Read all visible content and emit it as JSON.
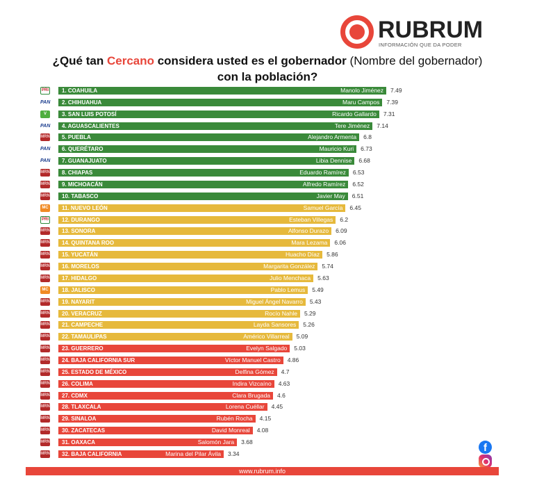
{
  "brand": {
    "name": "RUBRUM",
    "tagline": "INFORMACIÓN QUE DA PODER"
  },
  "title": {
    "part1": "¿Qué tan ",
    "highlight": "Cercano",
    "part2": " considera usted es el gobernador",
    "part3": " (Nombre del gobernador) ",
    "part4": "con la población?"
  },
  "footer": {
    "url": "www.rubrum.info"
  },
  "social": {
    "facebook": "facebook-icon",
    "instagram": "instagram-icon"
  },
  "colors": {
    "green": "#3a8a3a",
    "yellow": "#e6b93c",
    "red": "#e8463a"
  },
  "chart_data": {
    "type": "bar",
    "orientation": "horizontal",
    "title": "¿Qué tan Cercano considera usted es el gobernador (Nombre del gobernador) con la población?",
    "categories": [
      "1. COAHUILA",
      "2. CHIHUAHUA",
      "3. SAN LUIS POTOSÍ",
      "4. AGUASCALIENTES",
      "5. PUEBLA",
      "6. QUERÉTARO",
      "7. GUANAJUATO",
      "8. CHIAPAS",
      "9. MICHOACÁN",
      "10. TABASCO",
      "11. NUEVO LEÓN",
      "12. DURANGO",
      "13. SONORA",
      "14. QUINTANA ROO",
      "15. YUCATÁN",
      "16. MORELOS",
      "17. HIDALGO",
      "18. JALISCO",
      "19. NAYARIT",
      "20. VERACRUZ",
      "21. CAMPECHE",
      "22. TAMAULIPAS",
      "23. GUERRERO",
      "24. BAJA CALIFORNIA SUR",
      "25. ESTADO DE MÉXICO",
      "26. COLIMA",
      "27. CDMX",
      "28. TLAXCALA",
      "29. SINALOA",
      "30. ZACATECAS",
      "31. OAXACA",
      "32. BAJA CALIFORNIA"
    ],
    "governors": [
      "Manolo Jiménez",
      "Maru Campos",
      "Ricardo Gallardo",
      "Tere Jiménez",
      "Alejandro Armenta",
      "Mauricio Kuri",
      "Libia Dennise",
      "Eduardo Ramírez",
      "Alfredo Ramírez",
      "Javier May",
      "Samuel García",
      "Esteban Villegas",
      "Alfonso Durazo",
      "Mara Lezama",
      "Huacho Díaz",
      "Margarita González",
      "Julio Menchaca",
      "Pablo Lemus",
      "Miguel Ángel Navarro",
      "Rocío Nahle",
      "Layda Sansores",
      "Américo Villarreal",
      "Evelyn Salgado",
      "Víctor Manuel Castro",
      "Delfina Gómez",
      "Indira Vizcaíno",
      "Clara Brugada",
      "Lorena Cuéllar",
      "Rubén Rocha",
      "David Monreal",
      "Salomón Jara",
      "Marina del Pilar Ávila"
    ],
    "values": [
      7.49,
      7.39,
      7.31,
      7.14,
      6.8,
      6.73,
      6.68,
      6.53,
      6.52,
      6.51,
      6.45,
      6.2,
      6.09,
      6.06,
      5.86,
      5.74,
      5.63,
      5.49,
      5.43,
      5.29,
      5.26,
      5.09,
      5.03,
      4.86,
      4.7,
      4.63,
      4.6,
      4.45,
      4.15,
      4.08,
      3.68,
      3.34
    ],
    "value_labels": [
      "7.49",
      "7.39",
      "7.31",
      "7.14",
      "6.8",
      "6.73",
      "6.68",
      "6.53",
      "6.52",
      "6.51",
      "6.45",
      "6.2",
      "6.09",
      "6.06",
      "5.86",
      "5.74",
      "5.63",
      "5.49",
      "5.43",
      "5.29",
      "5.26",
      "5.09",
      "5.03",
      "4.86",
      "4.7",
      "4.63",
      "4.6",
      "4.45",
      "4.15",
      "4.08",
      "3.68",
      "3.34"
    ],
    "tiers": [
      "green",
      "green",
      "green",
      "green",
      "green",
      "green",
      "green",
      "green",
      "green",
      "green",
      "yellow",
      "yellow",
      "yellow",
      "yellow",
      "yellow",
      "yellow",
      "yellow",
      "yellow",
      "yellow",
      "yellow",
      "yellow",
      "yellow",
      "red",
      "red",
      "red",
      "red",
      "red",
      "red",
      "red",
      "red",
      "red",
      "red"
    ],
    "parties": [
      "pri",
      "pan",
      "pvem",
      "pan",
      "morena",
      "pan",
      "pan",
      "morena",
      "morena",
      "morena",
      "mc",
      "pri",
      "morena",
      "morena",
      "morena",
      "morena",
      "morena",
      "mc",
      "morena",
      "morena",
      "morena",
      "morena",
      "morena",
      "morena",
      "morena",
      "morena",
      "morena",
      "morena",
      "morena",
      "morena",
      "morena",
      "morena"
    ],
    "xlabel": "",
    "ylabel": "",
    "grid": false,
    "legend": "none"
  }
}
